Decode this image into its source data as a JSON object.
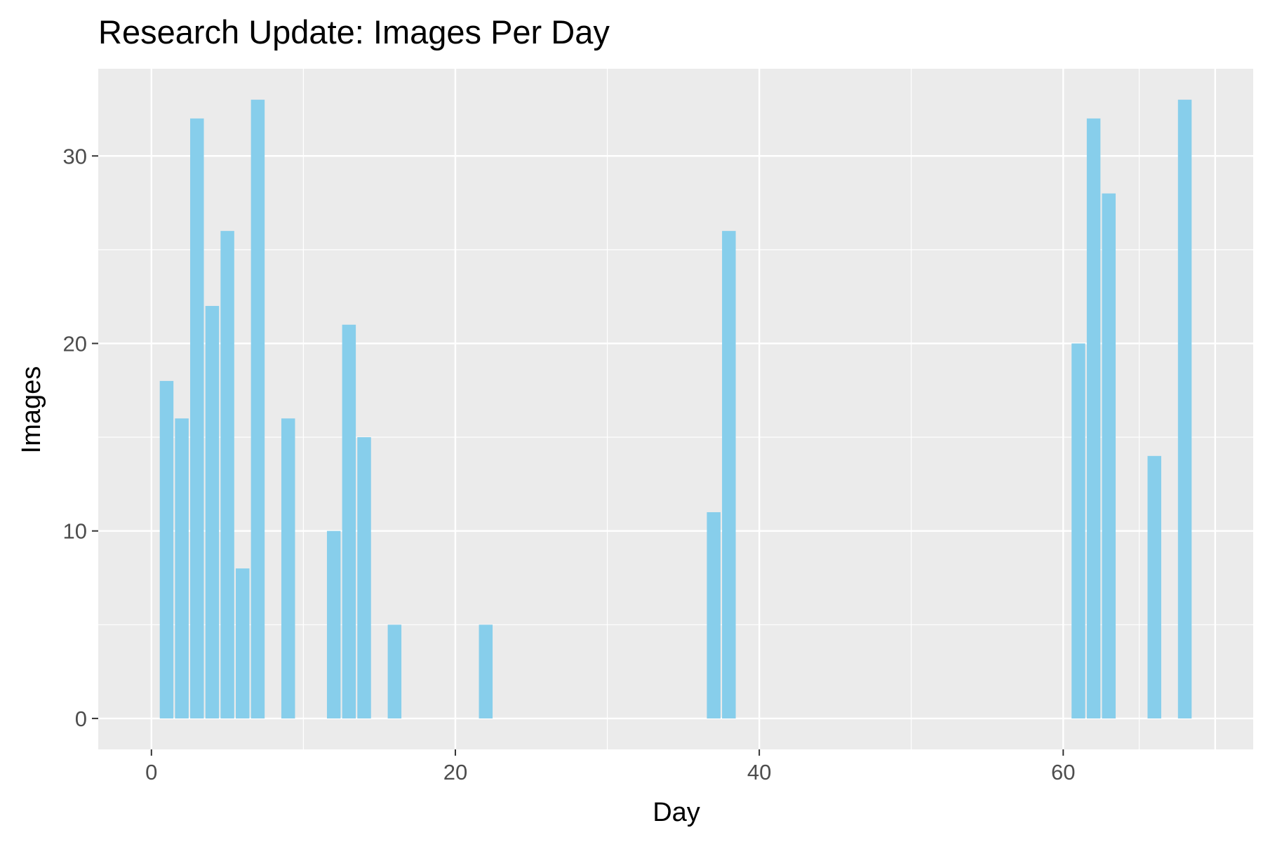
{
  "chart_data": {
    "type": "bar",
    "title": "Research Update: Images Per Day",
    "xlabel": "Day",
    "ylabel": "Images",
    "xlim": [
      -3.5,
      72.5
    ],
    "ylim": [
      -1.65,
      34.65
    ],
    "x_ticks": [
      0,
      20,
      40,
      60
    ],
    "x_tick_labels": [
      "0",
      "20",
      "40",
      "60"
    ],
    "y_ticks": [
      0,
      10,
      20,
      30
    ],
    "y_tick_labels": [
      "0",
      "10",
      "20",
      "30"
    ],
    "grid": true,
    "bar_color": "#87CEEB",
    "panel_color": "#EBEBEB",
    "grid_color": "#FFFFFF",
    "points": [
      {
        "x": 1,
        "y": 18
      },
      {
        "x": 2,
        "y": 16
      },
      {
        "x": 3,
        "y": 32
      },
      {
        "x": 4,
        "y": 22
      },
      {
        "x": 5,
        "y": 26
      },
      {
        "x": 6,
        "y": 8
      },
      {
        "x": 7,
        "y": 33
      },
      {
        "x": 9,
        "y": 16
      },
      {
        "x": 12,
        "y": 10
      },
      {
        "x": 13,
        "y": 21
      },
      {
        "x": 14,
        "y": 15
      },
      {
        "x": 16,
        "y": 5
      },
      {
        "x": 22,
        "y": 5
      },
      {
        "x": 37,
        "y": 11
      },
      {
        "x": 38,
        "y": 26
      },
      {
        "x": 61,
        "y": 20
      },
      {
        "x": 62,
        "y": 32
      },
      {
        "x": 63,
        "y": 28
      },
      {
        "x": 66,
        "y": 14
      },
      {
        "x": 68,
        "y": 33
      }
    ]
  }
}
